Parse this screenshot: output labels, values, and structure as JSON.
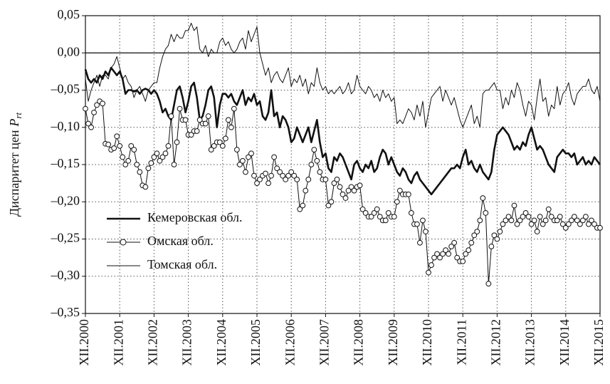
{
  "chart_data": {
    "type": "line",
    "ylabel": "Диспаритет цен",
    "ylabel_var": "P",
    "ylabel_sub": "rt",
    "categories": [
      "XII.2000",
      null,
      null,
      null,
      null,
      null,
      null,
      null,
      null,
      null,
      null,
      null,
      "XII.2001",
      null,
      null,
      null,
      null,
      null,
      null,
      null,
      null,
      null,
      null,
      null,
      "XII.2002",
      null,
      null,
      null,
      null,
      null,
      null,
      null,
      null,
      null,
      null,
      null,
      "XII.2003",
      null,
      null,
      null,
      null,
      null,
      null,
      null,
      null,
      null,
      null,
      null,
      "XII.2004",
      null,
      null,
      null,
      null,
      null,
      null,
      null,
      null,
      null,
      null,
      null,
      "XII.2005",
      null,
      null,
      null,
      null,
      null,
      null,
      null,
      null,
      null,
      null,
      null,
      "XII.2006",
      null,
      null,
      null,
      null,
      null,
      null,
      null,
      null,
      null,
      null,
      null,
      "XII.2007",
      null,
      null,
      null,
      null,
      null,
      null,
      null,
      null,
      null,
      null,
      null,
      "XII.2008",
      null,
      null,
      null,
      null,
      null,
      null,
      null,
      null,
      null,
      null,
      null,
      "XII.2009",
      null,
      null,
      null,
      null,
      null,
      null,
      null,
      null,
      null,
      null,
      null,
      "XII.2010",
      null,
      null,
      null,
      null,
      null,
      null,
      null,
      null,
      null,
      null,
      null,
      "XII.2011",
      null,
      null,
      null,
      null,
      null,
      null,
      null,
      null,
      null,
      null,
      null,
      "XII.2012",
      null,
      null,
      null,
      null,
      null,
      null,
      null,
      null,
      null,
      null,
      null,
      "XII.2013",
      null,
      null,
      null,
      null,
      null,
      null,
      null,
      null,
      null,
      null,
      null,
      "XII.2014",
      null,
      null,
      null,
      null,
      null,
      null,
      null,
      null,
      null,
      null,
      null,
      "XII.2015"
    ],
    "series": [
      {
        "name": "Кемеровская обл.",
        "color": "#111111",
        "line_width": 2.6,
        "marker": "none",
        "values": [
          -0.022,
          -0.035,
          -0.04,
          -0.035,
          -0.04,
          -0.03,
          -0.035,
          -0.025,
          -0.03,
          -0.02,
          -0.025,
          -0.03,
          -0.025,
          -0.035,
          -0.055,
          -0.05,
          -0.05,
          -0.052,
          -0.05,
          -0.055,
          -0.05,
          -0.048,
          -0.05,
          -0.055,
          -0.05,
          -0.055,
          -0.065,
          -0.08,
          -0.075,
          -0.085,
          -0.09,
          -0.07,
          -0.05,
          -0.045,
          -0.06,
          -0.08,
          -0.065,
          -0.045,
          -0.04,
          -0.06,
          -0.09,
          -0.085,
          -0.07,
          -0.05,
          -0.045,
          -0.06,
          -0.1,
          -0.07,
          -0.055,
          -0.055,
          -0.06,
          -0.055,
          -0.065,
          -0.07,
          -0.06,
          -0.05,
          -0.07,
          -0.06,
          -0.065,
          -0.055,
          -0.07,
          -0.065,
          -0.085,
          -0.09,
          -0.08,
          -0.05,
          -0.085,
          -0.08,
          -0.1,
          -0.085,
          -0.09,
          -0.1,
          -0.12,
          -0.115,
          -0.1,
          -0.11,
          -0.12,
          -0.11,
          -0.1,
          -0.12,
          -0.105,
          -0.09,
          -0.12,
          -0.14,
          -0.135,
          -0.155,
          -0.16,
          -0.14,
          -0.145,
          -0.135,
          -0.14,
          -0.15,
          -0.16,
          -0.17,
          -0.15,
          -0.145,
          -0.155,
          -0.16,
          -0.15,
          -0.155,
          -0.145,
          -0.16,
          -0.155,
          -0.14,
          -0.13,
          -0.135,
          -0.15,
          -0.14,
          -0.15,
          -0.16,
          -0.165,
          -0.155,
          -0.16,
          -0.17,
          -0.175,
          -0.165,
          -0.16,
          -0.17,
          -0.175,
          -0.18,
          -0.185,
          -0.19,
          -0.185,
          -0.18,
          -0.175,
          -0.17,
          -0.165,
          -0.16,
          -0.155,
          -0.155,
          -0.15,
          -0.155,
          -0.14,
          -0.13,
          -0.15,
          -0.145,
          -0.155,
          -0.16,
          -0.15,
          -0.16,
          -0.165,
          -0.17,
          -0.16,
          -0.13,
          -0.11,
          -0.105,
          -0.1,
          -0.105,
          -0.11,
          -0.12,
          -0.13,
          -0.125,
          -0.13,
          -0.12,
          -0.125,
          -0.11,
          -0.1,
          -0.115,
          -0.13,
          -0.125,
          -0.13,
          -0.14,
          -0.15,
          -0.155,
          -0.16,
          -0.14,
          -0.135,
          -0.13,
          -0.135,
          -0.135,
          -0.14,
          -0.135,
          -0.15,
          -0.145,
          -0.14,
          -0.15,
          -0.145,
          -0.15,
          -0.14,
          -0.145,
          -0.15
        ]
      },
      {
        "name": "Омская обл.",
        "color": "#111111",
        "line_width": 1,
        "marker": "circle",
        "values": [
          -0.075,
          -0.095,
          -0.1,
          -0.08,
          -0.07,
          -0.065,
          -0.068,
          -0.122,
          -0.123,
          -0.13,
          -0.128,
          -0.112,
          -0.125,
          -0.14,
          -0.15,
          -0.145,
          -0.125,
          -0.13,
          -0.15,
          -0.16,
          -0.178,
          -0.18,
          -0.155,
          -0.148,
          -0.14,
          -0.135,
          -0.145,
          -0.14,
          -0.135,
          -0.125,
          -0.085,
          -0.15,
          -0.12,
          -0.075,
          -0.09,
          -0.09,
          -0.11,
          -0.11,
          -0.105,
          -0.105,
          -0.09,
          -0.095,
          -0.095,
          -0.085,
          -0.13,
          -0.125,
          -0.12,
          -0.12,
          -0.125,
          -0.115,
          -0.09,
          -0.1,
          -0.075,
          -0.13,
          -0.15,
          -0.145,
          -0.16,
          -0.14,
          -0.135,
          -0.165,
          -0.175,
          -0.17,
          -0.165,
          -0.162,
          -0.175,
          -0.165,
          -0.14,
          -0.155,
          -0.16,
          -0.165,
          -0.17,
          -0.165,
          -0.16,
          -0.165,
          -0.17,
          -0.21,
          -0.205,
          -0.185,
          -0.17,
          -0.15,
          -0.13,
          -0.145,
          -0.16,
          -0.17,
          -0.17,
          -0.205,
          -0.2,
          -0.175,
          -0.17,
          -0.18,
          -0.19,
          -0.195,
          -0.185,
          -0.18,
          -0.185,
          -0.18,
          -0.178,
          -0.21,
          -0.215,
          -0.22,
          -0.22,
          -0.215,
          -0.21,
          -0.22,
          -0.225,
          -0.225,
          -0.215,
          -0.22,
          -0.22,
          -0.2,
          -0.185,
          -0.19,
          -0.19,
          -0.19,
          -0.215,
          -0.23,
          -0.23,
          -0.255,
          -0.225,
          -0.24,
          -0.295,
          -0.285,
          -0.275,
          -0.27,
          -0.275,
          -0.27,
          -0.265,
          -0.27,
          -0.26,
          -0.255,
          -0.275,
          -0.28,
          -0.28,
          -0.27,
          -0.265,
          -0.255,
          -0.245,
          -0.24,
          -0.225,
          -0.195,
          -0.215,
          -0.31,
          -0.26,
          -0.245,
          -0.25,
          -0.24,
          -0.23,
          -0.225,
          -0.22,
          -0.225,
          -0.205,
          -0.23,
          -0.225,
          -0.22,
          -0.215,
          -0.22,
          -0.23,
          -0.225,
          -0.24,
          -0.22,
          -0.23,
          -0.225,
          -0.21,
          -0.22,
          -0.225,
          -0.225,
          -0.22,
          -0.23,
          -0.235,
          -0.23,
          -0.225,
          -0.22,
          -0.225,
          -0.23,
          -0.225,
          -0.22,
          -0.23,
          -0.225,
          -0.23,
          -0.235,
          -0.235
        ]
      },
      {
        "name": "Томская обл.",
        "color": "#111111",
        "line_width": 1,
        "marker": "none",
        "values": [
          -0.035,
          -0.065,
          -0.05,
          -0.04,
          -0.03,
          -0.045,
          -0.03,
          -0.03,
          -0.035,
          -0.02,
          -0.015,
          -0.005,
          -0.02,
          -0.035,
          -0.03,
          -0.04,
          -0.045,
          -0.06,
          -0.05,
          -0.045,
          -0.055,
          -0.065,
          -0.05,
          -0.045,
          -0.04,
          -0.04,
          -0.02,
          -0.005,
          0.005,
          0.01,
          0.025,
          0.015,
          0.025,
          0.02,
          0.02,
          0.03,
          0.03,
          0.04,
          0.03,
          0.035,
          0.005,
          0.0,
          0.01,
          -0.005,
          0.005,
          0.0,
          0.0,
          0.015,
          0.02,
          0.01,
          0.015,
          0.005,
          0.0,
          0.005,
          0.015,
          0.02,
          0.005,
          0.03,
          0.015,
          0.025,
          0.035,
          0.0,
          -0.015,
          -0.03,
          -0.02,
          -0.04,
          -0.03,
          -0.025,
          -0.035,
          -0.04,
          -0.03,
          -0.02,
          -0.045,
          -0.035,
          -0.04,
          -0.03,
          -0.045,
          -0.035,
          -0.055,
          -0.04,
          -0.045,
          -0.02,
          -0.04,
          -0.05,
          -0.045,
          -0.055,
          -0.05,
          -0.055,
          -0.05,
          -0.045,
          -0.055,
          -0.05,
          -0.04,
          -0.055,
          -0.05,
          -0.03,
          -0.045,
          -0.05,
          -0.055,
          -0.045,
          -0.05,
          -0.06,
          -0.055,
          -0.065,
          -0.05,
          -0.06,
          -0.055,
          -0.065,
          -0.06,
          -0.095,
          -0.09,
          -0.095,
          -0.085,
          -0.075,
          -0.08,
          -0.09,
          -0.07,
          -0.085,
          -0.065,
          -0.1,
          -0.08,
          -0.06,
          -0.055,
          -0.05,
          -0.045,
          -0.065,
          -0.05,
          -0.06,
          -0.07,
          -0.06,
          -0.075,
          -0.09,
          -0.1,
          -0.09,
          -0.08,
          -0.07,
          -0.095,
          -0.085,
          -0.1,
          -0.055,
          -0.05,
          -0.05,
          -0.045,
          -0.04,
          -0.05,
          -0.05,
          -0.075,
          -0.06,
          -0.07,
          -0.05,
          -0.06,
          -0.04,
          -0.05,
          -0.07,
          -0.085,
          -0.065,
          -0.07,
          -0.09,
          -0.06,
          -0.035,
          -0.065,
          -0.06,
          -0.085,
          -0.07,
          -0.075,
          -0.045,
          -0.07,
          -0.055,
          -0.05,
          -0.04,
          -0.06,
          -0.07,
          -0.055,
          -0.05,
          -0.045,
          -0.045,
          -0.035,
          -0.05,
          -0.055,
          -0.045,
          -0.065
        ]
      }
    ],
    "ylim": [
      -0.35,
      0.05
    ],
    "yticks": [
      {
        "value": 0.05,
        "label": "0,05"
      },
      {
        "value": 0,
        "label": "0,00"
      },
      {
        "value": -0.05,
        "label": "–0,05"
      },
      {
        "value": -0.1,
        "label": "–0,10"
      },
      {
        "value": -0.15,
        "label": "–0,15"
      },
      {
        "value": -0.2,
        "label": "–0,20"
      },
      {
        "value": -0.25,
        "label": "–0,25"
      },
      {
        "value": -0.3,
        "label": "–0,30"
      },
      {
        "value": -0.35,
        "label": "–0,35"
      }
    ],
    "grid": true,
    "zero_line": true,
    "legend": "lower-left"
  }
}
